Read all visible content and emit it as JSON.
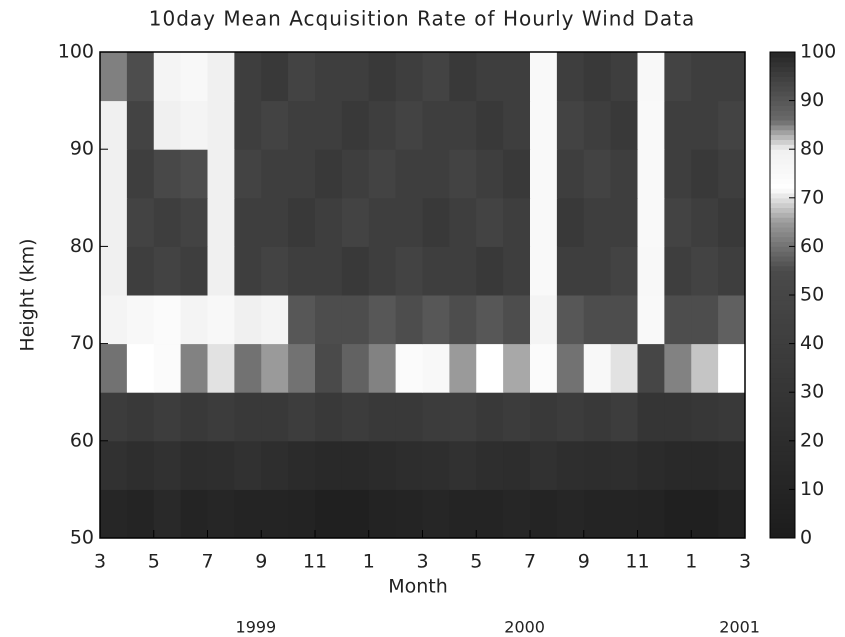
{
  "chart_data": {
    "type": "heatmap",
    "title": "10day Mean Acquisition Rate of Hourly Wind Data",
    "x_label": "Month",
    "y_label": "Height (km)",
    "xlim": [
      0,
      24
    ],
    "xticks": [
      {
        "value": 0,
        "label": "3"
      },
      {
        "value": 2,
        "label": "5"
      },
      {
        "value": 4,
        "label": "7"
      },
      {
        "value": 6,
        "label": "9"
      },
      {
        "value": 8,
        "label": "11"
      },
      {
        "value": 10,
        "label": "1"
      },
      {
        "value": 12,
        "label": "3"
      },
      {
        "value": 14,
        "label": "5"
      },
      {
        "value": 16,
        "label": "7"
      },
      {
        "value": 18,
        "label": "9"
      },
      {
        "value": 20,
        "label": "11"
      },
      {
        "value": 22,
        "label": "1"
      },
      {
        "value": 24,
        "label": "3"
      }
    ],
    "year_ticks": [
      {
        "value": 5.8,
        "label": "1999"
      },
      {
        "value": 15.8,
        "label": "2000"
      },
      {
        "value": 23.8,
        "label": "2001"
      }
    ],
    "ylim": [
      50,
      100
    ],
    "yticks": [
      50,
      60,
      70,
      80,
      90,
      100
    ],
    "x_edges": [
      0,
      1,
      2,
      3,
      4,
      5,
      6,
      7,
      8,
      9,
      10,
      11,
      12,
      13,
      14,
      15,
      16,
      17,
      18,
      19,
      20,
      21,
      22,
      23,
      24
    ],
    "y_edges": [
      50,
      55,
      60,
      65,
      70,
      75,
      80,
      85,
      90,
      95,
      100
    ],
    "z": [
      [
        12,
        10,
        15,
        10,
        12,
        10,
        10,
        8,
        5,
        5,
        8,
        10,
        12,
        10,
        10,
        12,
        10,
        12,
        10,
        10,
        8,
        5,
        5,
        8
      ],
      [
        25,
        22,
        25,
        20,
        22,
        25,
        22,
        18,
        15,
        15,
        18,
        20,
        22,
        25,
        22,
        20,
        25,
        22,
        20,
        22,
        18,
        15,
        15,
        18
      ],
      [
        38,
        35,
        40,
        35,
        38,
        35,
        35,
        40,
        35,
        38,
        35,
        35,
        38,
        40,
        35,
        38,
        35,
        38,
        35,
        40,
        30,
        30,
        32,
        35
      ],
      [
        60,
        72,
        74,
        62,
        70,
        60,
        65,
        60,
        55,
        58,
        62,
        74,
        76,
        65,
        72,
        66,
        74,
        60,
        76,
        70,
        50,
        62,
        68,
        72
      ],
      [
        78,
        76,
        74,
        78,
        76,
        80,
        78,
        90,
        92,
        92,
        90,
        92,
        90,
        92,
        90,
        92,
        78,
        90,
        92,
        92,
        75,
        92,
        92,
        88
      ],
      [
        80,
        95,
        94,
        95,
        80,
        95,
        94,
        95,
        95,
        96,
        95,
        94,
        95,
        95,
        96,
        95,
        75,
        95,
        95,
        94,
        76,
        95,
        94,
        95
      ],
      [
        80,
        94,
        95,
        94,
        80,
        95,
        95,
        96,
        95,
        94,
        95,
        95,
        96,
        95,
        94,
        95,
        75,
        96,
        95,
        95,
        75,
        94,
        95,
        96
      ],
      [
        80,
        95,
        93,
        92,
        80,
        94,
        95,
        95,
        96,
        95,
        94,
        95,
        95,
        94,
        95,
        96,
        75,
        95,
        94,
        95,
        75,
        95,
        96,
        95
      ],
      [
        80,
        94,
        80,
        78,
        80,
        95,
        94,
        95,
        95,
        96,
        95,
        94,
        95,
        95,
        96,
        95,
        75,
        94,
        95,
        96,
        75,
        95,
        95,
        94
      ],
      [
        85,
        92,
        78,
        76,
        80,
        95,
        96,
        94,
        95,
        95,
        96,
        95,
        94,
        96,
        95,
        95,
        75,
        95,
        96,
        95,
        76,
        94,
        95,
        95
      ]
    ],
    "colorscale": [
      [
        0,
        "#1c1c1c"
      ],
      [
        55,
        "#4a4a4a"
      ],
      [
        65,
        "#9a9a9a"
      ],
      [
        72,
        "#ffffff"
      ],
      [
        80,
        "#f0f0f0"
      ],
      [
        86,
        "#6a6a6a"
      ],
      [
        100,
        "#262626"
      ]
    ],
    "clim": [
      0,
      100
    ],
    "cticks": [
      0,
      10,
      20,
      30,
      40,
      50,
      60,
      70,
      80,
      90,
      100
    ]
  }
}
